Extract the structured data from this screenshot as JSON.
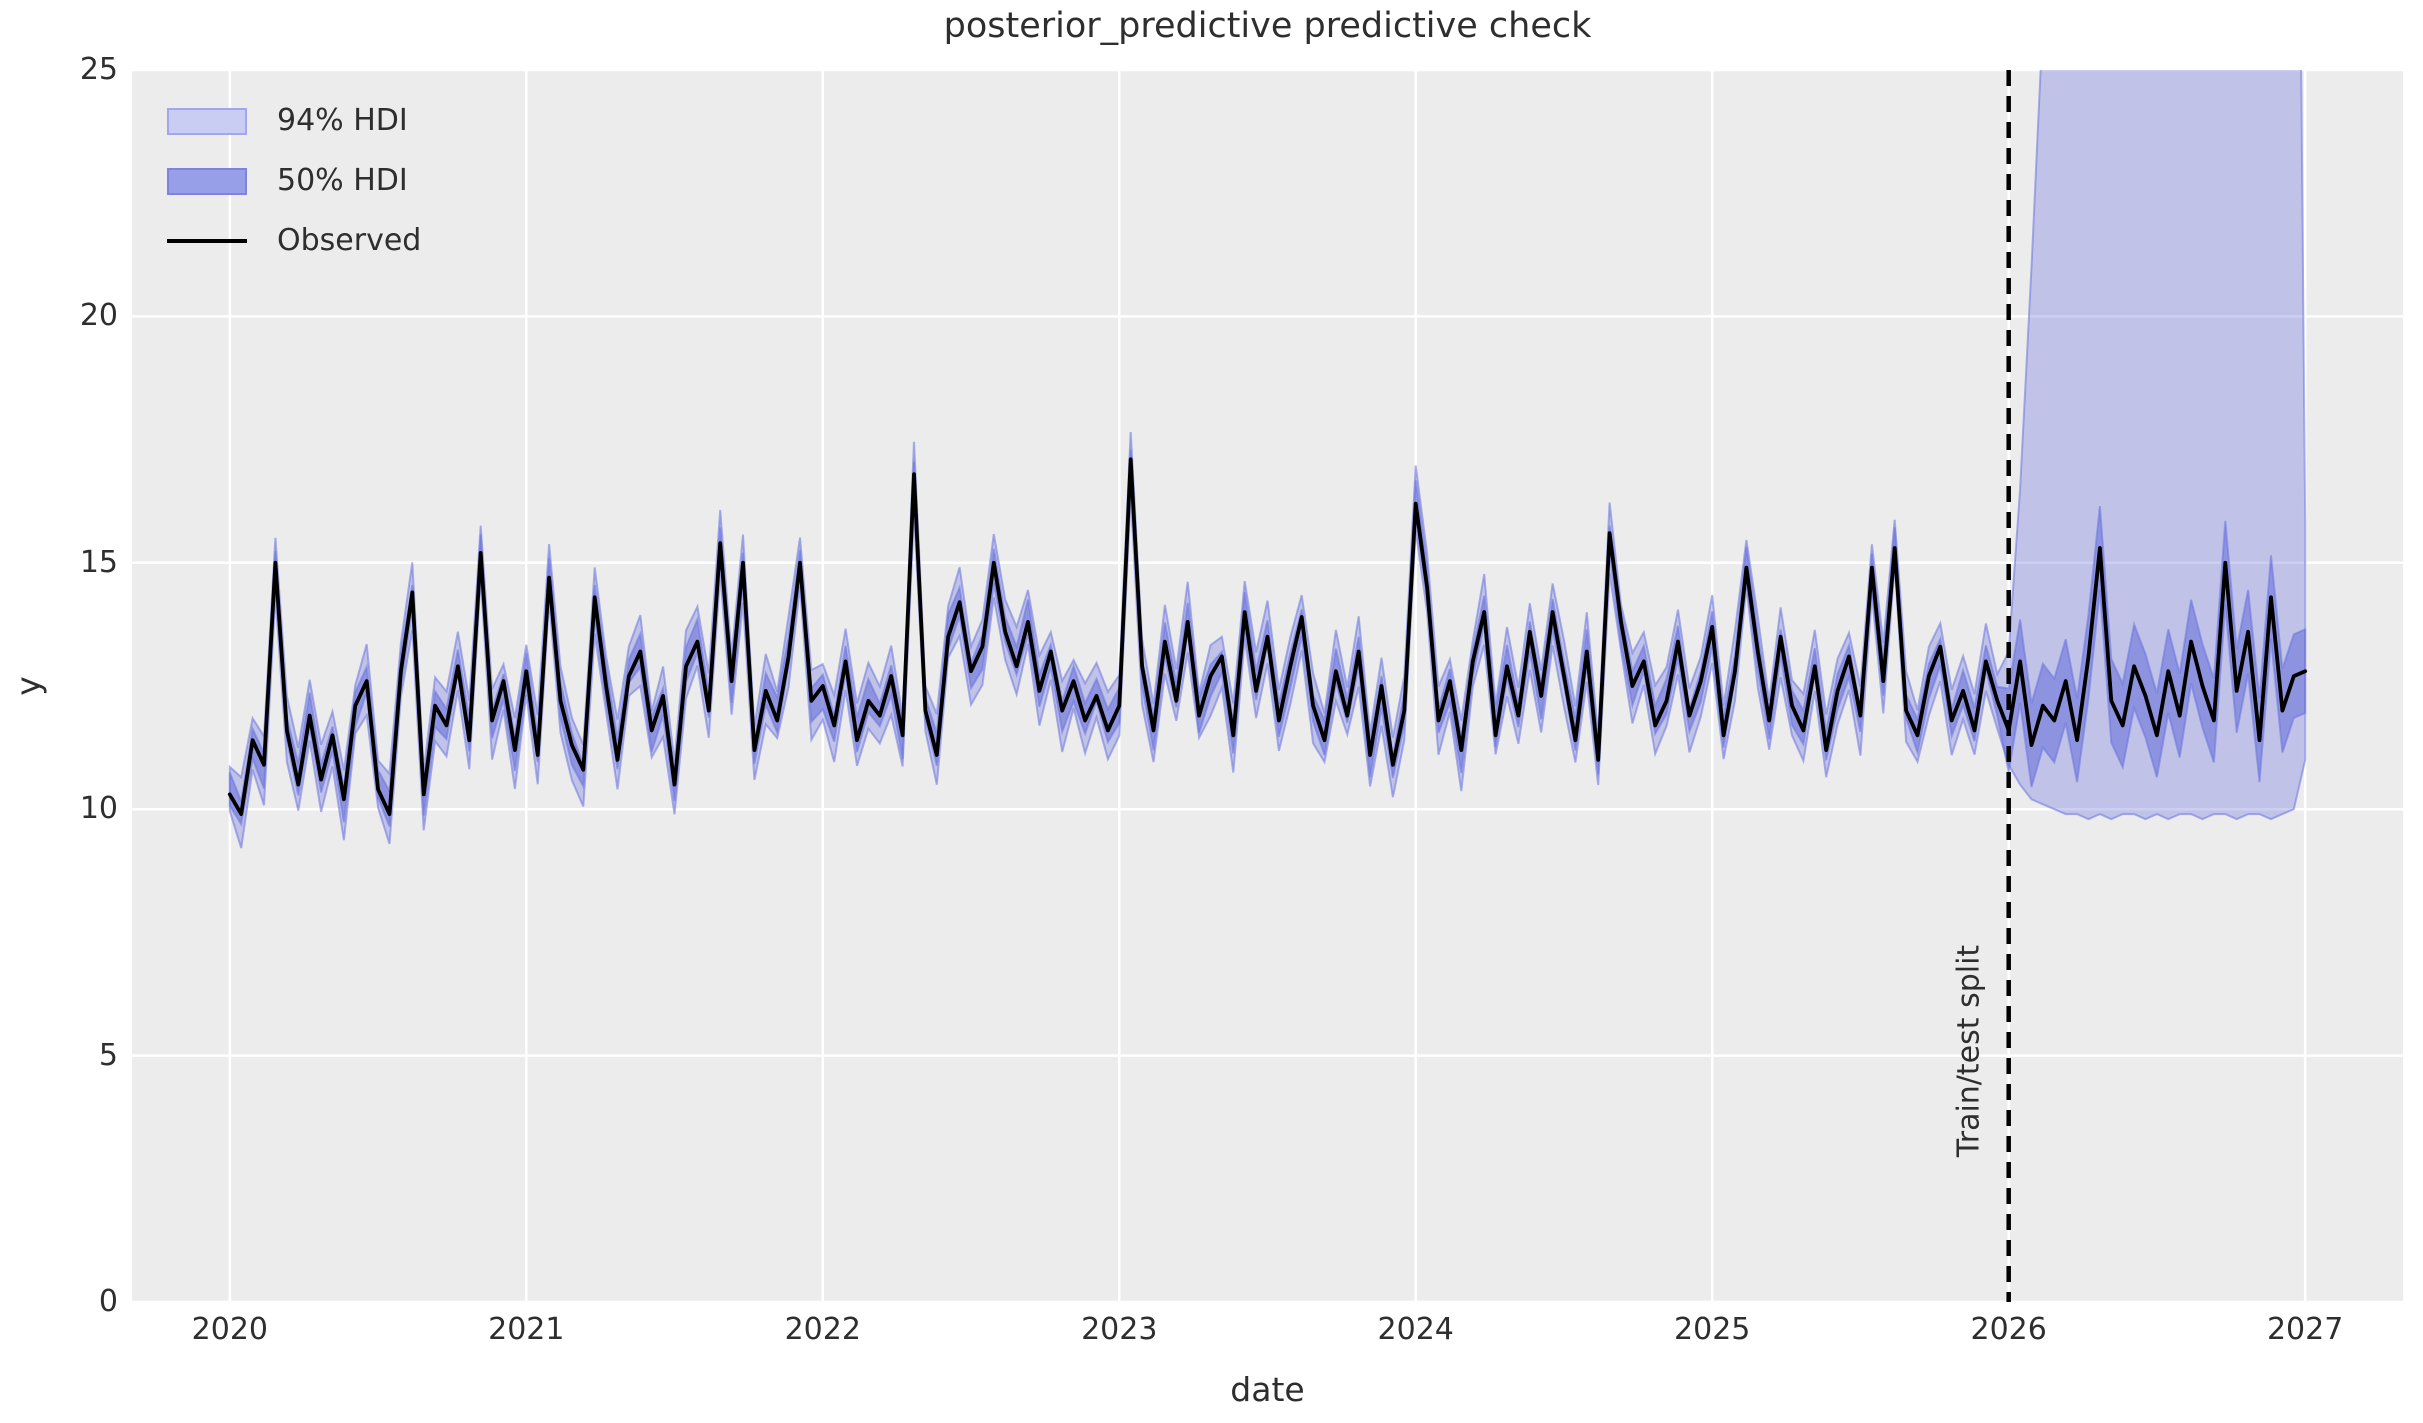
{
  "chart_data": {
    "type": "line",
    "title": "posterior_predictive predictive check",
    "xlabel": "date",
    "ylabel": "y",
    "xlim": [
      2019.67,
      2027.33
    ],
    "ylim": [
      0,
      25
    ],
    "x_ticks": [
      2020,
      2021,
      2022,
      2023,
      2024,
      2025,
      2026,
      2027
    ],
    "y_ticks": [
      0,
      5,
      10,
      15,
      20,
      25
    ],
    "grid": true,
    "legend": {
      "position": "upper left",
      "entries": [
        {
          "label": "94% HDI",
          "type": "band",
          "fill": "#c9cdf4",
          "edge": "#a0a6ef"
        },
        {
          "label": "50% HDI",
          "type": "band",
          "fill": "#989fe9",
          "edge": "#7c83e1"
        },
        {
          "label": "Observed",
          "type": "line",
          "color": "#000000"
        }
      ]
    },
    "split": {
      "year": 2026.0,
      "label": "Train/test split",
      "line_style": "dashed",
      "line_color": "#000000"
    },
    "observed": {
      "name": "Observed",
      "x_start": 2020.0,
      "x_step_years": 0.0384615,
      "values": [
        10.3,
        9.9,
        11.4,
        10.9,
        15.0,
        11.6,
        10.5,
        11.9,
        10.6,
        11.5,
        10.2,
        12.1,
        12.6,
        10.4,
        9.9,
        12.8,
        14.4,
        10.3,
        12.1,
        11.7,
        12.9,
        11.4,
        15.2,
        11.8,
        12.6,
        11.2,
        12.8,
        11.1,
        14.7,
        12.2,
        11.3,
        10.8,
        14.3,
        12.5,
        11.0,
        12.7,
        13.2,
        11.6,
        12.3,
        10.5,
        12.9,
        13.4,
        12.0,
        15.4,
        12.6,
        15.0,
        11.2,
        12.4,
        11.8,
        13.1,
        15.0,
        12.2,
        12.5,
        11.7,
        13.0,
        11.4,
        12.2,
        11.9,
        12.7,
        11.5,
        16.8,
        12.0,
        11.1,
        13.5,
        14.2,
        12.8,
        13.3,
        15.0,
        13.6,
        12.9,
        13.8,
        12.4,
        13.2,
        12.0,
        12.6,
        11.8,
        12.3,
        11.6,
        12.1,
        17.1,
        12.9,
        11.6,
        13.4,
        12.2,
        13.8,
        11.9,
        12.7,
        13.1,
        11.5,
        14.0,
        12.4,
        13.5,
        11.8,
        12.9,
        13.9,
        12.1,
        11.4,
        12.8,
        11.9,
        13.2,
        11.1,
        12.5,
        10.9,
        12.0,
        16.2,
        14.5,
        11.8,
        12.6,
        11.2,
        13.0,
        14.0,
        11.5,
        12.9,
        11.9,
        13.6,
        12.3,
        14.0,
        12.7,
        11.4,
        13.2,
        11.0,
        15.6,
        13.8,
        12.5,
        13.0,
        11.7,
        12.2,
        13.4,
        11.9,
        12.6,
        13.7,
        11.5,
        12.8,
        14.9,
        13.2,
        11.8,
        13.5,
        12.1,
        11.6,
        12.9,
        11.2,
        12.4,
        13.1,
        11.9,
        14.9,
        12.6,
        15.3,
        12.0,
        11.5,
        12.7,
        13.3,
        11.8,
        12.4,
        11.6,
        13.0,
        12.2,
        11.6,
        13.0,
        11.3,
        12.1,
        11.8,
        12.6,
        11.4,
        13.1,
        15.3,
        12.2,
        11.7,
        12.9,
        12.3,
        11.5,
        12.8,
        11.9,
        13.4,
        12.5,
        11.8,
        15.0,
        12.4,
        13.6,
        11.4,
        14.3,
        12.0,
        12.7,
        12.8
      ]
    },
    "hdi94": {
      "label": "94% HDI",
      "fill": "rgba(122,130,224,0.38)",
      "in_sample_halfwidth": 0.6,
      "forecast_upper": [
        13.2,
        16.5,
        21.0,
        26.0,
        30.0,
        33.0,
        35.0,
        36.5,
        37.5,
        38.5,
        39.0,
        39.5,
        40.0,
        40.0,
        40.5,
        40.5,
        41.0,
        41.0,
        41.0,
        41.5,
        41.5,
        41.5,
        42.0,
        42.0,
        42.0,
        42.0,
        15.8
      ],
      "forecast_lower": [
        10.9,
        10.5,
        10.2,
        10.1,
        10.0,
        9.9,
        9.9,
        9.8,
        9.9,
        9.8,
        9.9,
        9.9,
        9.8,
        9.9,
        9.8,
        9.9,
        9.9,
        9.8,
        9.9,
        9.9,
        9.8,
        9.9,
        9.9,
        9.8,
        9.9,
        10.0,
        11.0
      ]
    },
    "hdi50": {
      "label": "50% HDI",
      "fill": "rgba(98,107,216,0.55)",
      "in_sample_halfwidth": 0.3,
      "forecast_halfwidth": 0.85
    },
    "colors": {
      "axes_bg": "#ececec",
      "grid": "#ffffff",
      "text": "#2e2e2e",
      "band_edge": "rgba(108,116,222,0.55)",
      "observed": "#000000",
      "split_line": "#000000"
    }
  }
}
